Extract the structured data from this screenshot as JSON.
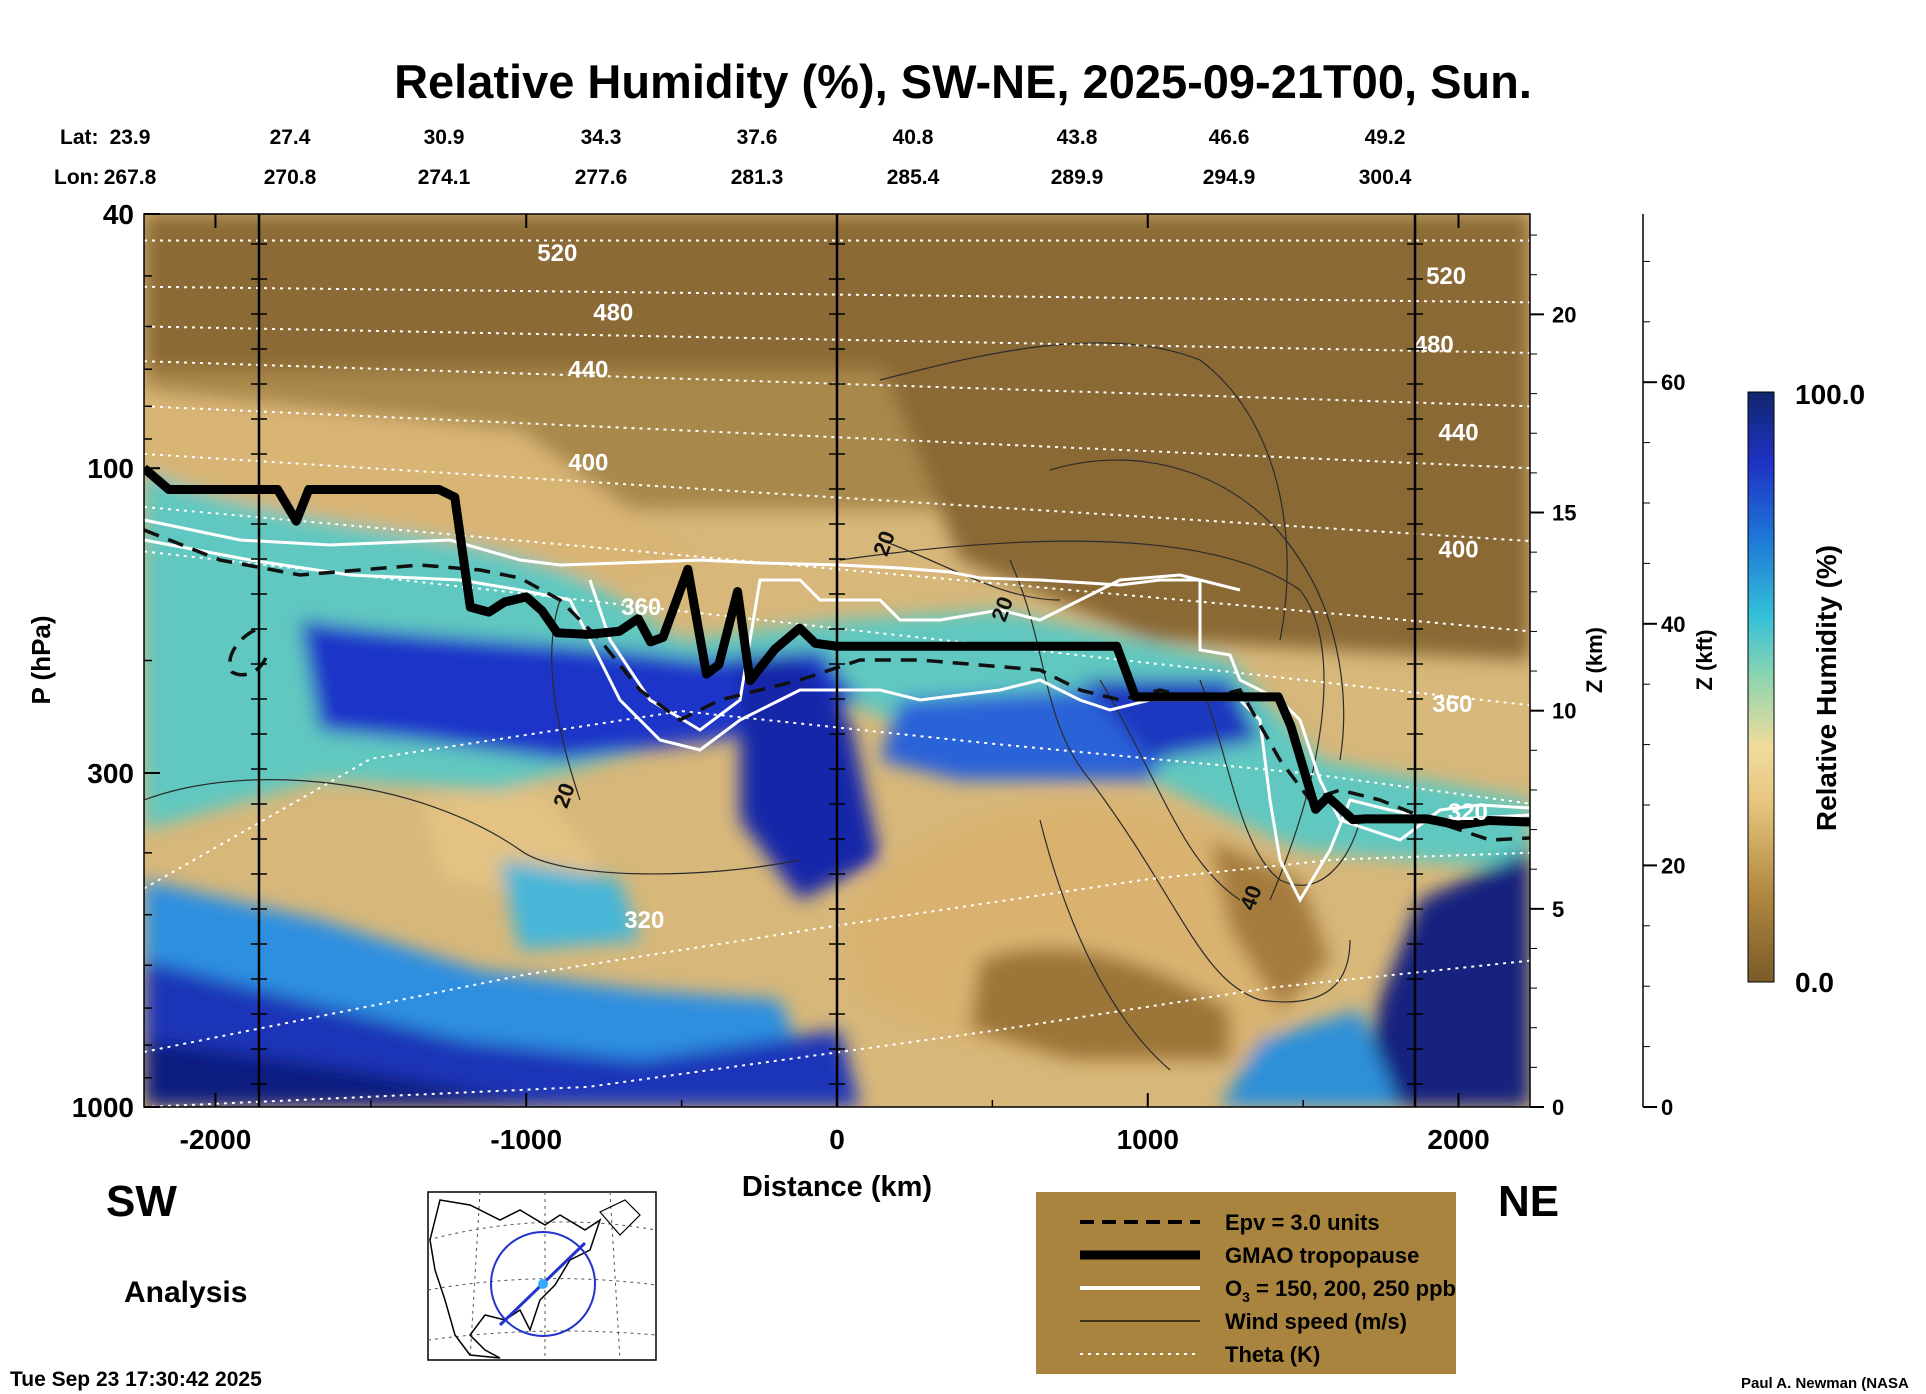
{
  "chart_data": {
    "type": "heatmap",
    "title": "Relative Humidity (%), SW-NE, 2025-09-21T00, Sun.",
    "xlabel": "Distance (km)",
    "ylabel": "P (hPa)",
    "y2label": "Z (km)",
    "y3label": "Z (kft)",
    "x_range": [
      -2230,
      2230
    ],
    "y_range_hpa": [
      1000,
      40
    ],
    "x_ticks": [
      -2000,
      -1000,
      0,
      1000,
      2000
    ],
    "y_ticks": [
      {
        "p": 40,
        "label": "40"
      },
      {
        "p": 100,
        "label": "100"
      },
      {
        "p": 300,
        "label": "300"
      },
      {
        "p": 1000,
        "label": "1000"
      }
    ],
    "z_km_ticks": [
      0,
      5,
      10,
      15,
      20
    ],
    "z_kft_ticks": [
      0,
      20,
      40,
      60
    ],
    "lat_label": "Lat:",
    "lon_label": "Lon:",
    "latlon": [
      {
        "lat": "23.9",
        "lon": "267.8"
      },
      {
        "lat": "27.4",
        "lon": "270.8"
      },
      {
        "lat": "30.9",
        "lon": "274.1"
      },
      {
        "lat": "34.3",
        "lon": "277.6"
      },
      {
        "lat": "37.6",
        "lon": "281.3"
      },
      {
        "lat": "40.8",
        "lon": "285.4"
      },
      {
        "lat": "43.8",
        "lon": "289.9"
      },
      {
        "lat": "46.6",
        "lon": "294.9"
      },
      {
        "lat": "49.2",
        "lon": "300.4"
      }
    ],
    "colorbar": {
      "label": "Relative Humidity (%)",
      "max": "100.0",
      "min": "0.0"
    },
    "theta_labels": [
      {
        "text": "520",
        "x": -900,
        "p": 46
      },
      {
        "text": "480",
        "x": -720,
        "p": 57
      },
      {
        "text": "440",
        "x": -800,
        "p": 70
      },
      {
        "text": "400",
        "x": -800,
        "p": 98
      },
      {
        "text": "360",
        "x": -630,
        "p": 165
      },
      {
        "text": "320",
        "x": -620,
        "p": 510
      },
      {
        "text": "520",
        "x": 1960,
        "p": 50
      },
      {
        "text": "480",
        "x": 1920,
        "p": 64
      },
      {
        "text": "440",
        "x": 2000,
        "p": 88
      },
      {
        "text": "400",
        "x": 2000,
        "p": 134
      },
      {
        "text": "360",
        "x": 1980,
        "p": 234
      },
      {
        "text": "320",
        "x": 2030,
        "p": 345
      }
    ],
    "wind_labels": [
      {
        "text": "20",
        "x": 150,
        "p": 131
      },
      {
        "text": "20",
        "x": 530,
        "p": 166
      },
      {
        "text": "20",
        "x": -880,
        "p": 325
      },
      {
        "text": "40",
        "x": 1330,
        "p": 470
      }
    ],
    "legend": [
      {
        "style": "dashed",
        "label": "Epv = 3.0 units"
      },
      {
        "style": "thick",
        "label": "GMAO tropopause"
      },
      {
        "style": "white",
        "label": "O",
        "sub": "3",
        "suffix": " = 150, 200, 250 ppb"
      },
      {
        "style": "thin",
        "label": "Wind speed (m/s)"
      },
      {
        "style": "dotted",
        "label": "Theta (K)"
      }
    ],
    "side_labels": {
      "sw": "SW",
      "ne": "NE",
      "analysis": "Analysis"
    },
    "timestamp": "Tue Sep 23 17:30:42 2025",
    "credit": "Paul A. Newman (NASA",
    "tropopause": {
      "x": [
        -2230,
        -2150,
        -1800,
        -1740,
        -1700,
        -1280,
        -1230,
        -1180,
        -1120,
        -1070,
        -1000,
        -950,
        -900,
        -800,
        -700,
        -640,
        -600,
        -560,
        -480,
        -420,
        -380,
        -320,
        -280,
        -200,
        -120,
        -70,
        0,
        900,
        960,
        1420,
        1460,
        1540,
        1580,
        1660,
        1700,
        1900,
        2000,
        2100,
        2230
      ],
      "p": [
        100,
        108,
        108,
        121,
        108,
        108,
        111,
        165,
        168,
        162,
        159,
        167,
        181,
        182,
        180,
        172,
        187,
        184,
        144,
        210,
        203,
        156,
        215,
        192,
        178,
        188,
        190,
        190,
        228,
        228,
        253,
        342,
        327,
        355,
        354,
        354,
        362,
        356,
        358
      ]
    },
    "colors": {
      "humid": "#1a2a9e",
      "dry": "#6e4f24",
      "legend_bg": "#a8843e"
    }
  }
}
